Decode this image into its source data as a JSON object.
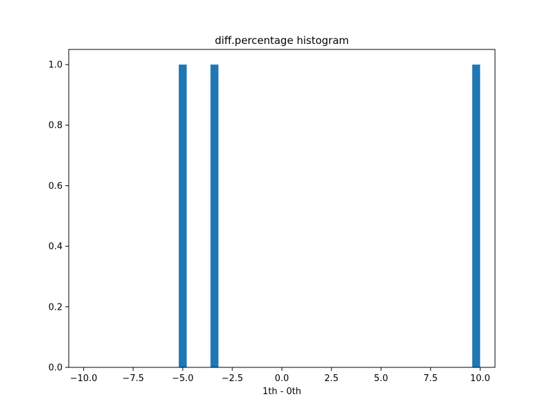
{
  "chart_data": {
    "type": "bar",
    "title": "diff.percentage histogram",
    "xlabel": "1th - 0th",
    "ylabel": "",
    "xlim": [
      -10.75,
      10.75
    ],
    "ylim": [
      0,
      1.05
    ],
    "xticks": [
      -10,
      -7.5,
      -5,
      -2.5,
      0,
      2.5,
      5,
      7.5,
      10
    ],
    "xtick_labels": [
      "−10.0",
      "−7.5",
      "−5.0",
      "−2.5",
      "0.0",
      "2.5",
      "5.0",
      "7.5",
      "10.0"
    ],
    "yticks": [
      0,
      0.2,
      0.4,
      0.6,
      0.8,
      1.0
    ],
    "ytick_labels": [
      "0.0",
      "0.2",
      "0.4",
      "0.6",
      "0.8",
      "1.0"
    ],
    "bin_width": 0.4,
    "bars": [
      {
        "x_start": -5.2,
        "x_end": -4.8,
        "count": 1
      },
      {
        "x_start": -3.6,
        "x_end": -3.2,
        "count": 1
      },
      {
        "x_start": 9.6,
        "x_end": 10.0,
        "count": 1
      }
    ],
    "bar_color": "#1f77b4",
    "grid": false,
    "legend": "none"
  }
}
